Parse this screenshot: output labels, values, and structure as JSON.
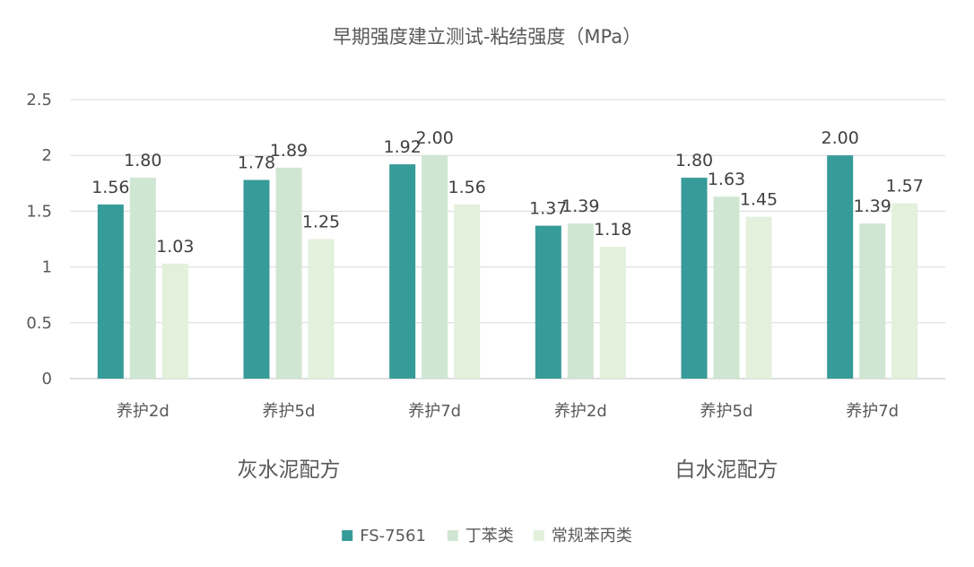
{
  "chart_data": {
    "type": "bar",
    "title": "早期强度建立测试-粘结强度（MPa）",
    "xlabel": "",
    "ylabel": "",
    "ylim": [
      0,
      2.5
    ],
    "yticks": [
      "0",
      "0.5",
      "1",
      "1.5",
      "2",
      "2.5"
    ],
    "ytick_values": [
      0,
      0.5,
      1,
      1.5,
      2,
      2.5
    ],
    "grid": true,
    "legend_position": "bottom",
    "categories": [
      "养护2d",
      "养护5d",
      "养护7d",
      "养护2d",
      "养护5d",
      "养护7d"
    ],
    "groups": [
      {
        "label": "灰水泥配方",
        "span": [
          0,
          3
        ]
      },
      {
        "label": "白水泥配方",
        "span": [
          3,
          6
        ]
      }
    ],
    "series": [
      {
        "name": "FS-7561",
        "color": "#369B99",
        "values": [
          1.56,
          1.78,
          1.92,
          1.37,
          1.8,
          2.0
        ],
        "labels": [
          "1.56",
          "1.78",
          "1.92",
          "1.37",
          "1.80",
          "2.00"
        ]
      },
      {
        "name": "丁苯类",
        "color": "#CFE6D2",
        "values": [
          1.8,
          1.89,
          2.0,
          1.39,
          1.63,
          1.39
        ],
        "labels": [
          "1.80",
          "1.89",
          "2.00",
          "1.39",
          "1.63",
          "1.39"
        ]
      },
      {
        "name": "常规苯丙类",
        "color": "#E2F0DC",
        "values": [
          1.03,
          1.25,
          1.56,
          1.18,
          1.45,
          1.57
        ],
        "labels": [
          "1.03",
          "1.25",
          "1.56",
          "1.18",
          "1.45",
          "1.57"
        ]
      }
    ]
  }
}
